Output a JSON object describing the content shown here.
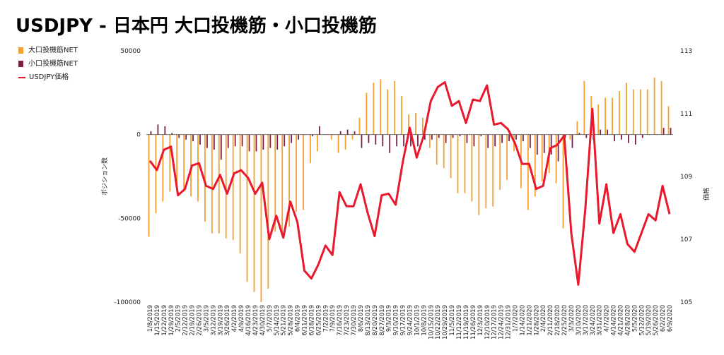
{
  "chart_data": {
    "type": "bar",
    "title": "USDJPY - 日本円 大口投機筋・小口投機筋",
    "ylabel": "ポジション数",
    "y2label": "価格",
    "ylim": [
      -100000,
      50000
    ],
    "y2lim": [
      105,
      113
    ],
    "yticks": [
      50000,
      0,
      -50000,
      -100000
    ],
    "yticklabels": [
      "50000",
      "0",
      "-50000",
      "-100000"
    ],
    "y2ticks": [
      113,
      111,
      109,
      107,
      105
    ],
    "grid": false,
    "legend_position": "left",
    "categories": [
      "1/8/2019",
      "1/15/2019",
      "1/22/2019",
      "1/29/2019",
      "2/5/2019",
      "2/12/2019",
      "2/19/2019",
      "2/26/2019",
      "3/5/2019",
      "3/12/2019",
      "3/19/2019",
      "3/26/2019",
      "4/2/2019",
      "4/9/2019",
      "4/16/2019",
      "4/23/2019",
      "4/30/2019",
      "5/7/2019",
      "5/14/2019",
      "5/21/2019",
      "5/28/2019",
      "6/4/2019",
      "6/11/2019",
      "6/18/2019",
      "6/25/2019",
      "7/2/2019",
      "7/9/2019",
      "7/16/2019",
      "7/23/2019",
      "7/30/2019",
      "8/6/2019",
      "8/13/2019",
      "8/20/2019",
      "8/27/2019",
      "9/3/2019",
      "9/10/2019",
      "9/17/2019",
      "9/24/2019",
      "10/1/2019",
      "10/8/2019",
      "10/15/2019",
      "10/22/2019",
      "10/29/2019",
      "11/5/2019",
      "11/12/2019",
      "11/19/2019",
      "11/26/2019",
      "12/3/2019",
      "12/10/2019",
      "12/17/2019",
      "12/24/2019",
      "12/31/2019",
      "1/7/2020",
      "1/14/2020",
      "1/21/2020",
      "1/28/2020",
      "2/4/2020",
      "2/11/2020",
      "2/18/2020",
      "2/25/2020",
      "3/3/2020",
      "3/10/2020",
      "3/17/2020",
      "3/24/2020",
      "3/31/2020",
      "4/7/2020",
      "4/14/2020",
      "4/21/2020",
      "4/28/2020",
      "5/5/2020",
      "5/12/2020",
      "5/19/2020",
      "5/26/2020",
      "6/2/2020",
      "6/9/2020"
    ],
    "xticklabels": [
      "1/8/2019",
      "1/15/2019",
      "1/22/2019",
      "1/29/2019",
      "2/5/2019",
      "2/12/2019",
      "2/19/2019",
      "2/26/2019",
      "3/5/2019",
      "3/12/2019",
      "3/19/2019",
      "3/26/2019",
      "4/2/2019",
      "4/9/2019",
      "4/16/2019",
      "4/23/2019",
      "4/30/2019",
      "5/7/2019",
      "5/14/2019",
      "5/21/2019",
      "5/28/2019",
      "6/4/2019",
      "6/11/2019",
      "6/18/2019",
      "6/25/2019",
      "7/2/2019",
      "7/9/2019",
      "7/16/2019",
      "7/23/2019",
      "7/30/2019",
      "8/6/2019",
      "8/13/2019",
      "8/20/2019",
      "8/27/2019",
      "9/3/2019",
      "9/10/2019",
      "9/17/2019",
      "9/24/2019",
      "10/1/2019",
      "10/8/2019",
      "10/15/2019",
      "10/22/2019",
      "10/29/2019",
      "11/5/2019",
      "11/12/2019",
      "11/19/2019",
      "11/26/2019",
      "12/3/2019",
      "12/10/2019",
      "12/17/2019",
      "12/24/2019",
      "12/31/2019",
      "1/7/2020",
      "1/14/2020",
      "1/21/2020",
      "1/28/2020",
      "2/4/2020",
      "2/11/2020",
      "2/18/2020",
      "2/25/2020",
      "3/3/2020",
      "3/10/2020",
      "3/17/2020",
      "3/24/2020",
      "3/31/2020",
      "4/7/2020",
      "4/14/2020",
      "4/21/2020",
      "4/28/2020",
      "5/5/2020",
      "5/12/2020",
      "5/19/2020",
      "5/26/2020",
      "6/2/2020",
      "6/9/2020"
    ],
    "series": [
      {
        "name": "大口投機筋NET",
        "type": "bar",
        "axis": "left",
        "color": "#f5a030",
        "values": [
          -61000,
          -47000,
          -40000,
          -34000,
          -30000,
          -34000,
          -37000,
          -40000,
          -52000,
          -59000,
          -59000,
          -62000,
          -63000,
          -71000,
          -88000,
          -94000,
          -100000,
          -92000,
          -58000,
          -60000,
          -55000,
          -46000,
          -45000,
          -17000,
          -10000,
          0,
          -3000,
          -11000,
          -9000,
          -3000,
          10000,
          25000,
          31000,
          33000,
          27000,
          32000,
          23000,
          12000,
          13000,
          10000,
          -8000,
          -18000,
          -20000,
          -26000,
          -35000,
          -35000,
          -40000,
          -48000,
          -44000,
          -43000,
          -33000,
          -27000,
          -10000,
          -32000,
          -45000,
          -37000,
          -28000,
          -23000,
          -29000,
          -56000,
          -3000,
          8000,
          32000,
          23000,
          18000,
          22000,
          22000,
          26000,
          31000,
          27000,
          27000,
          27000,
          34000,
          32000,
          17000
        ]
      },
      {
        "name": "小口投機筋NET",
        "type": "bar",
        "axis": "left",
        "color": "#7b1f45",
        "values": [
          2000,
          6000,
          5000,
          1000,
          -2000,
          -3000,
          -4000,
          -6000,
          -8000,
          -9000,
          -15000,
          -8000,
          -7000,
          -7000,
          -10000,
          -10000,
          -9000,
          -8000,
          -9000,
          -7000,
          -5000,
          -3000,
          0,
          -1000,
          5000,
          0,
          0,
          2000,
          3000,
          2000,
          -8000,
          -5000,
          -6000,
          -7000,
          -11000,
          -7000,
          -7000,
          -7000,
          -7000,
          -3000,
          -3000,
          -2000,
          -5000,
          -2000,
          -1000,
          -5000,
          -7000,
          -1000,
          -8000,
          -7000,
          -5000,
          -4000,
          -3000,
          -4000,
          -8000,
          -12000,
          -11000,
          -12000,
          -16000,
          -2000,
          -8000,
          1000,
          -2000,
          -3000,
          3000,
          3000,
          -4000,
          -3000,
          -5000,
          -6000,
          -2000,
          0,
          0,
          4000,
          4000
        ]
      },
      {
        "name": "USDJPY価格",
        "type": "line",
        "axis": "right",
        "color": "#e8192c",
        "values": [
          109.5,
          109.2,
          109.85,
          109.95,
          108.4,
          108.6,
          109.35,
          109.42,
          108.7,
          108.6,
          109.05,
          108.45,
          109.1,
          109.2,
          108.95,
          108.45,
          108.8,
          107.0,
          107.75,
          107.05,
          108.2,
          107.55,
          106.0,
          105.75,
          106.2,
          106.8,
          106.5,
          108.5,
          108.05,
          108.05,
          108.75,
          107.85,
          107.1,
          108.4,
          108.45,
          108.1,
          109.45,
          110.55,
          109.6,
          110.3,
          111.4,
          111.85,
          112.0,
          111.25,
          111.4,
          110.7,
          111.45,
          111.4,
          111.9,
          110.65,
          110.7,
          110.5,
          110.05,
          109.4,
          109.4,
          108.6,
          108.7,
          109.9,
          110.0,
          110.3,
          107.2,
          105.55,
          107.95,
          111.15,
          107.5,
          108.75,
          107.2,
          107.8,
          106.85,
          106.6,
          107.2,
          107.8,
          107.6,
          108.7,
          107.8
        ]
      }
    ]
  }
}
